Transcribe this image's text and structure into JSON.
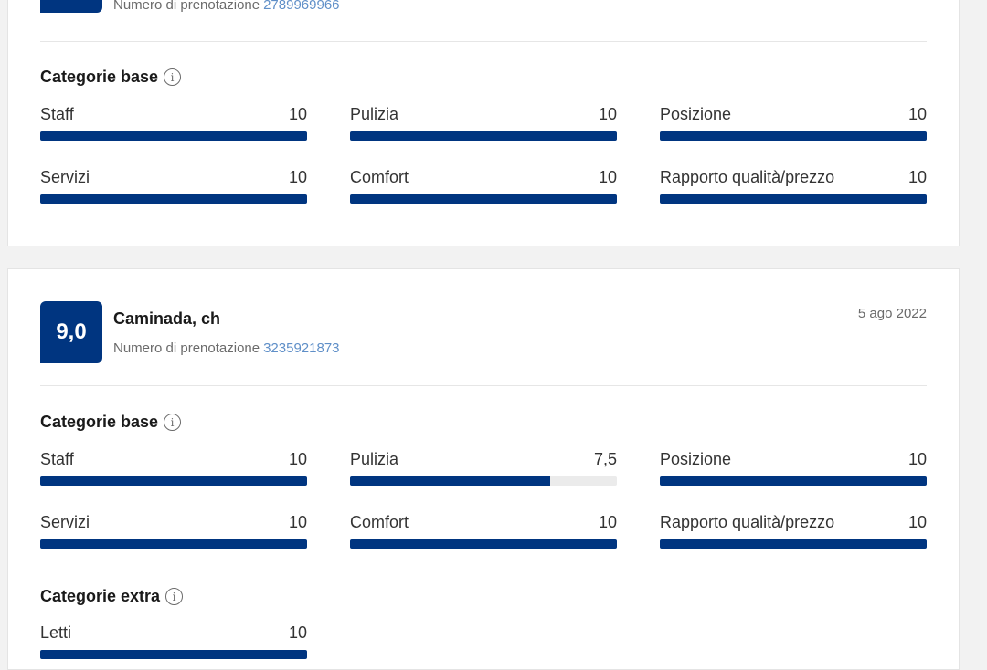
{
  "reviews": [
    {
      "score": "",
      "guest": "",
      "booking_label": "Numero di prenotazione",
      "booking_number": "2789969966",
      "date": "",
      "sections": [
        {
          "title": "Categorie base",
          "icon": "info-icon",
          "items": [
            {
              "label": "Staff",
              "value": "10",
              "fraction": 1.0
            },
            {
              "label": "Pulizia",
              "value": "10",
              "fraction": 1.0
            },
            {
              "label": "Posizione",
              "value": "10",
              "fraction": 1.0
            },
            {
              "label": "Servizi",
              "value": "10",
              "fraction": 1.0
            },
            {
              "label": "Comfort",
              "value": "10",
              "fraction": 1.0
            },
            {
              "label": "Rapporto qualità/prezzo",
              "value": "10",
              "fraction": 1.0
            }
          ]
        }
      ]
    },
    {
      "score": "9,0",
      "guest": "Caminada, ch",
      "booking_label": "Numero di prenotazione",
      "booking_number": "3235921873",
      "date": "5 ago 2022",
      "sections": [
        {
          "title": "Categorie base",
          "icon": "info-icon",
          "items": [
            {
              "label": "Staff",
              "value": "10",
              "fraction": 1.0
            },
            {
              "label": "Pulizia",
              "value": "7,5",
              "fraction": 0.75
            },
            {
              "label": "Posizione",
              "value": "10",
              "fraction": 1.0
            },
            {
              "label": "Servizi",
              "value": "10",
              "fraction": 1.0
            },
            {
              "label": "Comfort",
              "value": "10",
              "fraction": 1.0
            },
            {
              "label": "Rapporto qualità/prezzo",
              "value": "10",
              "fraction": 1.0
            }
          ]
        },
        {
          "title": "Categorie extra",
          "icon": "info-icon",
          "items": [
            {
              "label": "Letti",
              "value": "10",
              "fraction": 1.0
            }
          ]
        }
      ]
    }
  ],
  "colors": {
    "accent": "#003580",
    "bar_track": "#ebebeb",
    "link": "#5f8fc8"
  }
}
